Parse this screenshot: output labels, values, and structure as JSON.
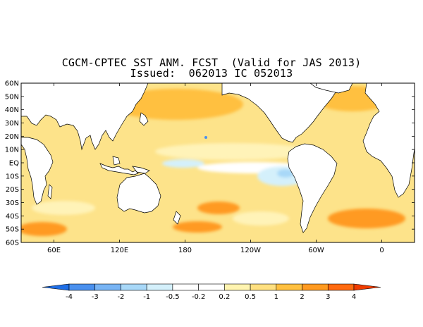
{
  "title": {
    "line1": "CGCM-CPTEC SST ANM. FCST  (Valid for JAS 2013)",
    "line2": "Issued:  062013 IC 052013"
  },
  "axes": {
    "lat_labels": [
      "60N",
      "50N",
      "40N",
      "30N",
      "20N",
      "10N",
      "EQ",
      "10S",
      "20S",
      "30S",
      "40S",
      "50S",
      "60S"
    ],
    "lat_values": [
      60,
      50,
      40,
      30,
      20,
      10,
      0,
      -10,
      -20,
      -30,
      -40,
      -50,
      -60
    ],
    "lon_labels": [
      "60E",
      "120E",
      "180",
      "120W",
      "60W",
      "0"
    ],
    "lon_values": [
      60,
      120,
      180,
      240,
      300,
      360
    ],
    "lon_range": [
      30,
      390
    ],
    "lat_range": [
      -60,
      60
    ]
  },
  "colorbar": {
    "labels": [
      "-4",
      "-3",
      "-2",
      "-1",
      "-0.5",
      "-0.2",
      "0.2",
      "0.5",
      "1",
      "2",
      "3",
      "4"
    ],
    "colors": [
      "#1e6ee6",
      "#4a90ee",
      "#78b4f4",
      "#a8d8f8",
      "#d4f0fb",
      "#ffffff",
      "#ffffff",
      "#fff4b0",
      "#ffe080",
      "#ffc040",
      "#ff9a20",
      "#ff6a10",
      "#f03c00"
    ]
  },
  "palette": {
    "land": "#ffffff",
    "ocean_base": "#fde38a",
    "ocean_light": "#fff3b8",
    "ocean_warm": "#ffc040",
    "ocean_hot": "#ff9a20",
    "ocean_neutral": "#ffffff",
    "ocean_cool": "#d4f0fb",
    "ocean_cooler": "#a8d8f8"
  }
}
